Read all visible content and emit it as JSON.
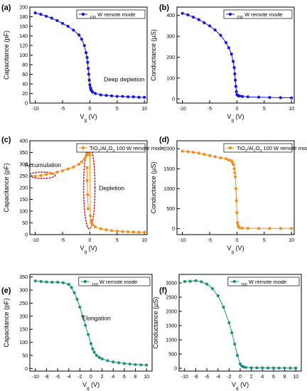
{
  "chart_data": [
    {
      "panel_label": "(a)",
      "type": "scatter",
      "xlabel": "V_g (V)",
      "ylabel": "Capacitance (pF)",
      "xlim": [
        -11,
        10.5
      ],
      "ylim": [
        0,
        200
      ],
      "xticks": [
        -10,
        -5,
        0,
        5,
        10
      ],
      "yticks": [
        0,
        20,
        40,
        60,
        80,
        100,
        120,
        140,
        160,
        180,
        200
      ],
      "annotations": [
        {
          "text": "Deep depletion",
          "x": 6.3,
          "y": 45
        }
      ],
      "series": [
        {
          "name": "100 W remote mode",
          "color": "#1515e0",
          "marker": "circle",
          "x": [
            -10,
            -9,
            -8,
            -7,
            -6,
            -5,
            -4,
            -3,
            -2,
            -1.5,
            -1,
            -0.7,
            -0.5,
            -0.4,
            -0.3,
            -0.2,
            -0.1,
            0,
            0.1,
            0.2,
            0.3,
            0.5,
            1,
            2,
            3,
            4,
            5,
            6,
            7,
            8,
            9,
            10
          ],
          "y": [
            188,
            185,
            181,
            177,
            172,
            166,
            160,
            152,
            142,
            133,
            120,
            105,
            95,
            85,
            72,
            60,
            48,
            38,
            32,
            28,
            26,
            23,
            20,
            17,
            16,
            15,
            14,
            14,
            13,
            13,
            12,
            12
          ]
        }
      ]
    },
    {
      "panel_label": "(b)",
      "type": "scatter",
      "xlabel": "V_g (V)",
      "ylabel": "Conductance (µS)",
      "xlim": [
        -11,
        10.5
      ],
      "ylim": [
        -20,
        440
      ],
      "xticks": [
        -10,
        -5,
        0,
        5,
        10
      ],
      "yticks": [
        0,
        100,
        200,
        300,
        400
      ],
      "series": [
        {
          "name": "100 W remote mode",
          "color": "#1515e0",
          "marker": "circle",
          "x": [
            -10,
            -9,
            -8,
            -7,
            -6,
            -5,
            -4,
            -3,
            -2,
            -1.5,
            -1,
            -0.7,
            -0.5,
            -0.4,
            -0.3,
            -0.2,
            -0.1,
            0,
            0.1,
            0.2,
            0.3,
            0.5,
            1,
            2,
            4,
            6,
            8,
            10
          ],
          "y": [
            410,
            403,
            392,
            380,
            365,
            350,
            330,
            305,
            270,
            245,
            215,
            180,
            150,
            120,
            90,
            60,
            35,
            20,
            18,
            16,
            15,
            14,
            12,
            10,
            8,
            7,
            6,
            5
          ]
        }
      ]
    },
    {
      "panel_label": "(c)",
      "type": "line",
      "xlabel": "V_g (V)",
      "ylabel": "Capacitance (pF)",
      "xlim": [
        -11,
        10.5
      ],
      "ylim": [
        0,
        400
      ],
      "xticks": [
        -10,
        -5,
        0,
        5,
        10
      ],
      "yticks": [
        0,
        50,
        100,
        150,
        200,
        250,
        300,
        350,
        400
      ],
      "annotations": [
        {
          "text": "Accumulation",
          "x": -8.6,
          "y": 288
        },
        {
          "text": "Depletion",
          "x": 4.0,
          "y": 190
        }
      ],
      "series": [
        {
          "name": "TiO2/Al2O3 100 W remote mode",
          "color": "#f28c1c",
          "marker": "circle",
          "x": [
            -10,
            -9,
            -8,
            -7,
            -6,
            -5,
            -4,
            -3,
            -2,
            -1.5,
            -1,
            -0.7,
            -0.5,
            -0.3,
            -0.1,
            0,
            0.1,
            0.2,
            0.3,
            0.5,
            1,
            2,
            3,
            4,
            5,
            6,
            7,
            8,
            9,
            10
          ],
          "y": [
            248,
            252,
            256,
            260,
            266,
            272,
            280,
            288,
            300,
            310,
            322,
            335,
            342,
            350,
            352,
            340,
            80,
            60,
            50,
            42,
            33,
            25,
            20,
            17,
            15,
            13,
            12,
            11,
            10,
            10
          ]
        },
        {
          "name": "",
          "color": "#f28c1c",
          "marker": "circle",
          "x": [
            -0.5,
            -0.5,
            -0.4,
            -0.3
          ],
          "y": [
            285,
            230,
            170,
            110
          ]
        }
      ]
    },
    {
      "panel_label": "(d)",
      "type": "line",
      "xlabel": "V_g (V)",
      "ylabel": "Conductance (µS)",
      "xlim": [
        -11,
        10.5
      ],
      "ylim": [
        -150,
        2200
      ],
      "xticks": [
        -10,
        -5,
        0,
        5,
        10
      ],
      "yticks": [
        0,
        500,
        1000,
        1500,
        2000
      ],
      "series": [
        {
          "name": "TiO2/Al2O3 100 W remote mode",
          "color": "#f28c1c",
          "marker": "circle",
          "x": [
            -10,
            -9,
            -8,
            -7,
            -6,
            -5,
            -4,
            -3,
            -2,
            -1.5,
            -1,
            -0.8,
            -0.6,
            -0.5,
            -0.4,
            -0.3,
            -0.2,
            -0.1,
            0,
            0.1,
            0.2,
            0.3,
            0.5,
            1,
            2,
            4,
            6,
            8,
            10
          ],
          "y": [
            1940,
            1930,
            1910,
            1890,
            1860,
            1830,
            1800,
            1770,
            1750,
            1720,
            1700,
            1650,
            1600,
            1500,
            1400,
            1300,
            1000,
            700,
            400,
            150,
            80,
            40,
            20,
            12,
            8,
            6,
            5,
            4,
            4
          ]
        }
      ]
    },
    {
      "panel_label": "(e)",
      "type": "scatter",
      "xlabel": "V_g (V)",
      "ylabel": "Capacitance (pF)",
      "xlim": [
        -11,
        11
      ],
      "ylim": [
        -10,
        360
      ],
      "xticks": [
        -10,
        -8,
        -6,
        -4,
        -2,
        0,
        2,
        4,
        6,
        8,
        10
      ],
      "yticks": [
        0,
        50,
        100,
        150,
        200,
        250,
        300,
        350
      ],
      "annotations": [
        {
          "text": "Elongation",
          "x": 1.0,
          "y": 185
        }
      ],
      "series": [
        {
          "name": "150 W remote mode",
          "color": "#1a9080",
          "marker": "circle",
          "x": [
            -10,
            -9,
            -8,
            -7,
            -6,
            -5,
            -4,
            -3.5,
            -3,
            -2.5,
            -2,
            -1.5,
            -1,
            -0.5,
            0,
            0.3,
            0.6,
            1,
            1.5,
            2,
            3,
            4,
            5,
            6,
            7,
            8,
            9,
            10
          ],
          "y": [
            335,
            333,
            331,
            330,
            330,
            328,
            322,
            310,
            290,
            265,
            235,
            200,
            165,
            130,
            95,
            75,
            62,
            50,
            42,
            37,
            30,
            25,
            22,
            19,
            17,
            15,
            14,
            13
          ]
        }
      ]
    },
    {
      "panel_label": "(f)",
      "type": "scatter",
      "xlabel": "V_g (V)",
      "ylabel": "Conductance (µS)",
      "xlim": [
        -11,
        11
      ],
      "ylim": [
        -100,
        3300
      ],
      "xticks": [
        -10,
        -8,
        -6,
        -4,
        -2,
        0,
        2,
        4,
        6,
        8,
        10
      ],
      "yticks": [
        0,
        500,
        1000,
        1500,
        2000,
        2500,
        3000
      ],
      "series": [
        {
          "name": "150 W remote mode",
          "color": "#1a9080",
          "marker": "circle",
          "x": [
            -10,
            -9,
            -8,
            -7,
            -6,
            -5,
            -4,
            -3,
            -2,
            -1.5,
            -1,
            -0.5,
            0,
            0.3,
            0.6,
            1,
            2,
            3,
            4,
            5,
            6,
            7,
            8,
            9,
            10
          ],
          "y": [
            3050,
            3060,
            3080,
            3040,
            2960,
            2800,
            2550,
            2150,
            1600,
            1250,
            850,
            450,
            150,
            80,
            50,
            30,
            20,
            15,
            12,
            10,
            9,
            8,
            8,
            7,
            7
          ]
        }
      ]
    }
  ]
}
